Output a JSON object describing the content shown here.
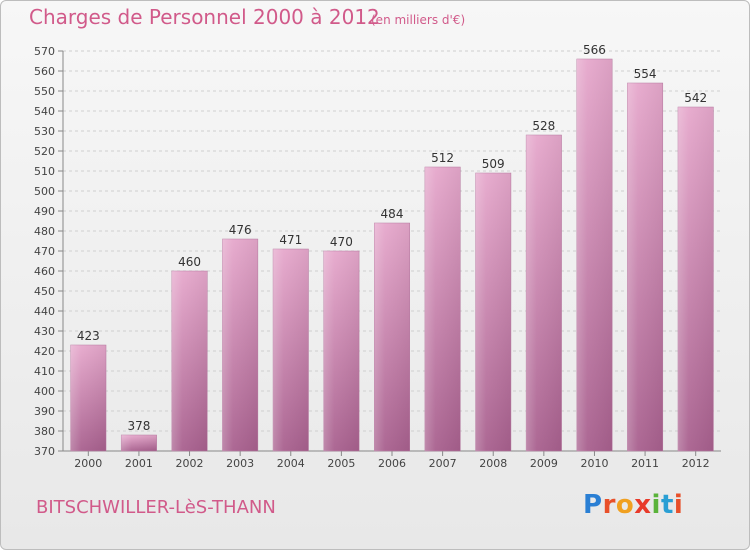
{
  "header": {
    "title": "Charges de Personnel 2000 à 2012",
    "subtitle": "(en milliers d'€)"
  },
  "footer": {
    "town": "BITSCHWILLER-LèS-THANN",
    "logo": "Proxiti",
    "logo_colors": [
      "#2a7fd4",
      "#e8502a",
      "#f0a020",
      "#e83a2a",
      "#5ab33a",
      "#2a9fd4",
      "#e8502a"
    ]
  },
  "colors": {
    "bar_top": "#e6a8cc",
    "bar_bottom": "#a8608e",
    "accent": "#d15a8a"
  },
  "chart_data": {
    "type": "bar",
    "title": "Charges de Personnel 2000 à 2012",
    "subtitle": "(en milliers d'€)",
    "categories": [
      "2000",
      "2001",
      "2002",
      "2003",
      "2004",
      "2005",
      "2006",
      "2007",
      "2008",
      "2009",
      "2010",
      "2011",
      "2012"
    ],
    "values": [
      423,
      378,
      460,
      476,
      471,
      470,
      484,
      512,
      509,
      528,
      566,
      554,
      542
    ],
    "ylim": [
      370,
      570
    ],
    "yticks": [
      370,
      380,
      390,
      400,
      410,
      420,
      430,
      440,
      450,
      460,
      470,
      480,
      490,
      500,
      510,
      520,
      530,
      540,
      550,
      560,
      570
    ],
    "grid": true,
    "data_labels": true
  }
}
